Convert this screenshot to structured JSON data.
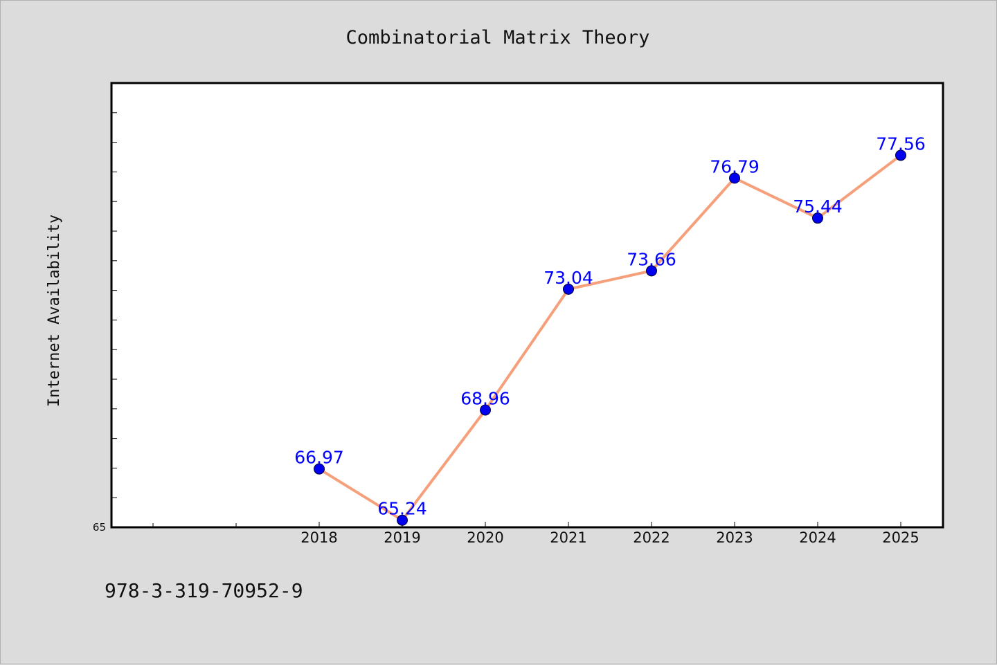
{
  "chart_data": {
    "type": "line",
    "title": "Combinatorial Matrix Theory",
    "xlabel": "",
    "ylabel": "Internet Availability",
    "categories": [
      "2018",
      "2019",
      "2020",
      "2021",
      "2022",
      "2023",
      "2024",
      "2025"
    ],
    "series": [
      {
        "values": [
          66.97,
          65.24,
          68.96,
          73.04,
          73.66,
          76.79,
          75.44,
          77.56
        ]
      }
    ],
    "data_labels": [
      "66.97",
      "65.24",
      "68.96",
      "73.04",
      "73.66",
      "76.79",
      "75.44",
      "77.56"
    ],
    "yticks_labeled": [
      "65"
    ],
    "ylim": [
      65,
      80
    ],
    "grid": false,
    "legend": "none",
    "colors": {
      "line": "#f5a07a",
      "marker": "#0000ee",
      "label": "#0000ff",
      "plot_bg": "#ffffff",
      "figure_bg": "#dcdcdc"
    }
  },
  "footer": {
    "isbn": "978-3-319-70952-9"
  }
}
